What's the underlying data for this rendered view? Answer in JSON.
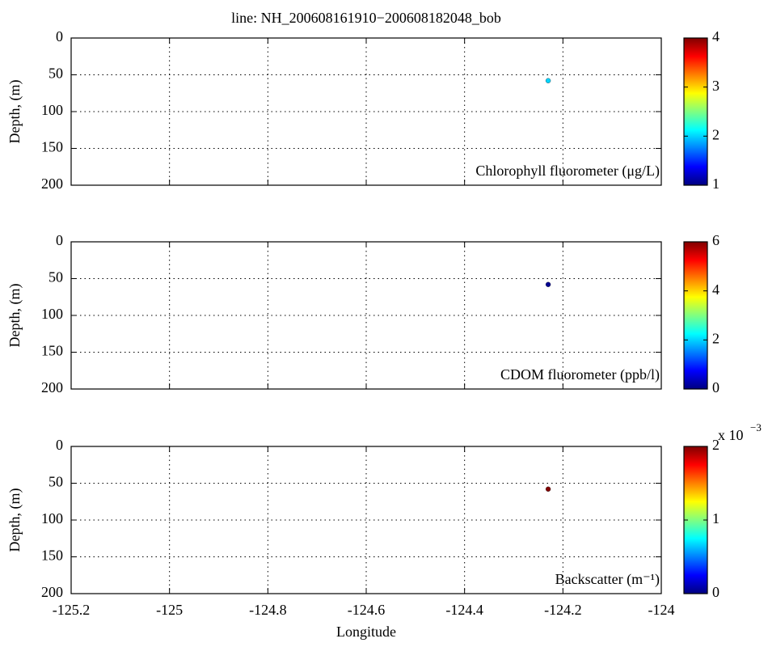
{
  "chart_data": [
    {
      "type": "scatter",
      "title": "line: NH_200608161910−200608182048_bob",
      "ylabel": "Depth, (m)",
      "annotation": "Chlorophyll fluorometer (μg/L)",
      "x": [
        -124.23
      ],
      "y": [
        58
      ],
      "c": [
        2.0
      ],
      "xlim": [
        -125.2,
        -124
      ],
      "xticks": [
        -125.2,
        -125,
        -124.8,
        -124.6,
        -124.4,
        -124.2,
        -124
      ],
      "xtick_labels": false,
      "ylim": [
        0,
        200
      ],
      "y_reversed": true,
      "yticks": [
        0,
        50,
        100,
        150,
        200
      ],
      "grid": true,
      "colormap": "jet",
      "clim": [
        1,
        4
      ],
      "cticks": [
        1,
        2,
        3,
        4
      ]
    },
    {
      "type": "scatter",
      "ylabel": "Depth, (m)",
      "annotation": "CDOM fluorometer (ppb/l)",
      "x": [
        -124.23
      ],
      "y": [
        58
      ],
      "c": [
        0.1
      ],
      "xlim": [
        -125.2,
        -124
      ],
      "xticks": [
        -125.2,
        -125,
        -124.8,
        -124.6,
        -124.4,
        -124.2,
        -124
      ],
      "xtick_labels": false,
      "ylim": [
        0,
        200
      ],
      "y_reversed": true,
      "yticks": [
        0,
        50,
        100,
        150,
        200
      ],
      "grid": true,
      "colormap": "jet",
      "clim": [
        0,
        6
      ],
      "cticks": [
        0,
        2,
        4,
        6
      ]
    },
    {
      "type": "scatter",
      "ylabel": "Depth, (m)",
      "xlabel": "Longitude",
      "annotation": "Backscatter (m⁻¹)",
      "x": [
        -124.23
      ],
      "y": [
        58
      ],
      "c": [
        0.002
      ],
      "xlim": [
        -125.2,
        -124
      ],
      "xticks": [
        -125.2,
        -125,
        -124.8,
        -124.6,
        -124.4,
        -124.2,
        -124
      ],
      "xtick_labels": true,
      "ylim": [
        0,
        200
      ],
      "y_reversed": true,
      "yticks": [
        0,
        50,
        100,
        150,
        200
      ],
      "grid": true,
      "colormap": "jet",
      "clim": [
        0,
        0.002
      ],
      "cticks": [
        0,
        {
          "value": 0.001,
          "label": "1"
        },
        {
          "value": 0.002,
          "label": "2"
        }
      ],
      "colorbar_multiplier": {
        "base": "x 10",
        "exponent": "−3"
      }
    }
  ]
}
